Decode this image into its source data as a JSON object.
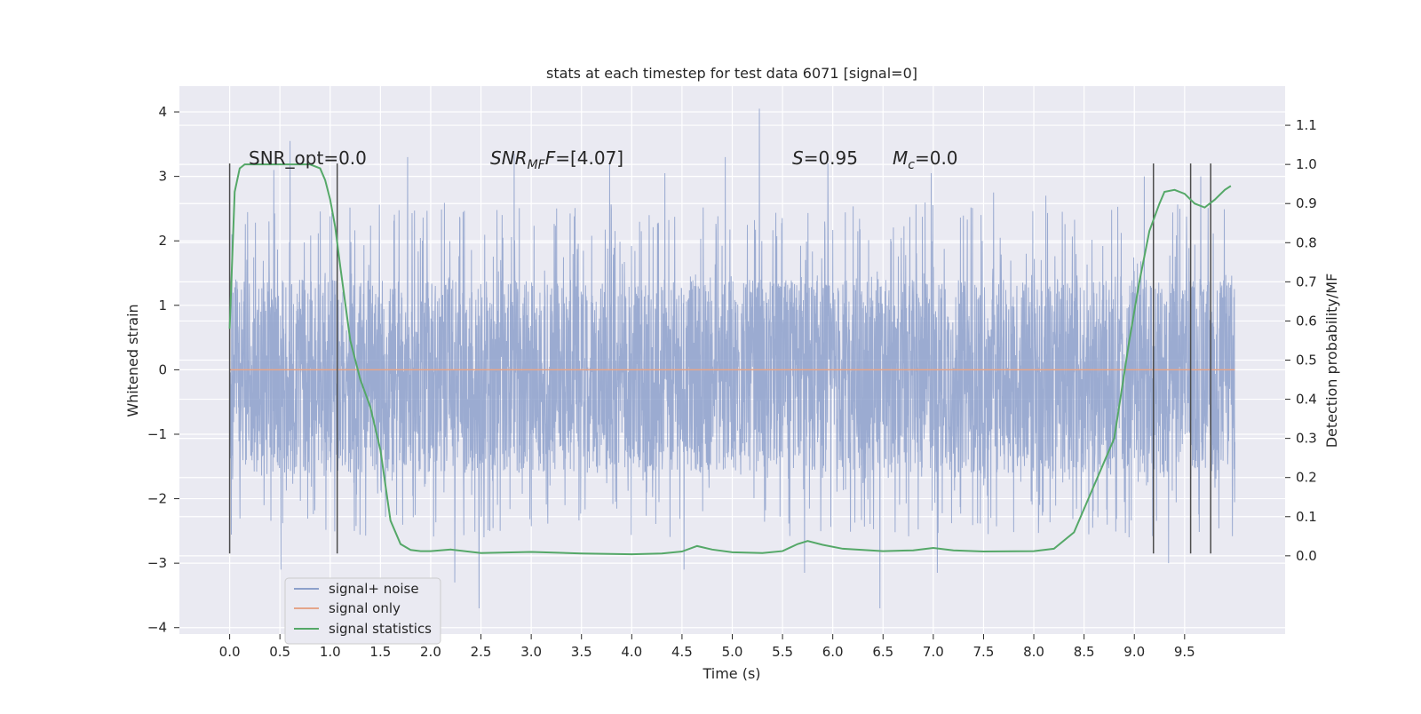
{
  "chart_data": {
    "type": "line",
    "title": "stats at each timestep for test data 6071 [signal=0]",
    "xlabel": "Time (s)",
    "ylabel_left": "Whitened strain",
    "ylabel_right": "Detection probability/MF",
    "xlim": [
      -0.5,
      10.5
    ],
    "ylim_left": [
      -4.1,
      4.4
    ],
    "ylim_right": [
      -0.2,
      1.2
    ],
    "x_ticks": [
      "0.0",
      "0.5",
      "1.0",
      "1.5",
      "2.0",
      "2.5",
      "3.0",
      "3.5",
      "4.0",
      "4.5",
      "5.0",
      "5.5",
      "6.0",
      "6.5",
      "7.0",
      "7.5",
      "8.0",
      "8.5",
      "9.0",
      "9.5"
    ],
    "x_tick_values": [
      0,
      0.5,
      1,
      1.5,
      2,
      2.5,
      3,
      3.5,
      4,
      4.5,
      5,
      5.5,
      6,
      6.5,
      7,
      7.5,
      8,
      8.5,
      9,
      9.5
    ],
    "y_left_ticks": [
      "4",
      "3",
      "2",
      "1",
      "0",
      "−1",
      "−2",
      "−3",
      "−4"
    ],
    "y_left_tick_values": [
      4,
      3,
      2,
      1,
      0,
      -1,
      -2,
      -3,
      -4
    ],
    "y_right_ticks": [
      "1.1",
      "1.0",
      "0.9",
      "0.8",
      "0.7",
      "0.6",
      "0.5",
      "0.4",
      "0.3",
      "0.2",
      "0.1",
      "0.0"
    ],
    "y_right_tick_values": [
      1.1,
      1.0,
      0.9,
      0.8,
      0.7,
      0.6,
      0.5,
      0.4,
      0.3,
      0.2,
      0.1,
      0.0
    ],
    "grid": true,
    "legend_placement": "lower-left",
    "annotations": {
      "snr_opt": "SNR_opt=0.0",
      "snr_mf_base": "SNR",
      "snr_mf_sub": "MF",
      "snr_mf_italic_f": "F",
      "snr_mf_value": "=[4.07]",
      "s_symbol": "S",
      "s_value": "=0.95",
      "mc_symbol": "M",
      "mc_sub": "c",
      "mc_value": "=0.0"
    },
    "vertical_markers_x": [
      0.0,
      1.07,
      9.19,
      9.56,
      9.76
    ],
    "series": [
      {
        "name": "signal+ noise",
        "color": "#8da0cb",
        "x_range": [
          0.0,
          10.0
        ],
        "samples": 4096,
        "typical_range": [
          -1.6,
          1.4
        ],
        "values_note_free": true,
        "spikes": [
          [
            0.51,
            -3.1
          ],
          [
            0.6,
            3.55
          ],
          [
            0.44,
            3.1
          ],
          [
            1.77,
            3.3
          ],
          [
            2.24,
            -3.3
          ],
          [
            2.48,
            -3.7
          ],
          [
            2.83,
            3.35
          ],
          [
            3.78,
            3.2
          ],
          [
            4.33,
            3.05
          ],
          [
            4.52,
            -3.1
          ],
          [
            4.93,
            3.3
          ],
          [
            5.27,
            4.05
          ],
          [
            5.72,
            -3.15
          ],
          [
            5.95,
            3.2
          ],
          [
            6.47,
            -3.7
          ],
          [
            7.04,
            -3.15
          ],
          [
            6.98,
            3.05
          ],
          [
            9.34,
            -3.0
          ],
          [
            9.66,
            3.0
          ],
          [
            9.1,
            3.0
          ],
          [
            1.24,
            -2.5
          ],
          [
            8.12,
            2.7
          ],
          [
            7.6,
            2.75
          ]
        ]
      },
      {
        "name": "signal only",
        "color": "#e5a58a",
        "x": [
          0.0,
          10.0
        ],
        "y": [
          0.0,
          0.0
        ]
      },
      {
        "name": "signal statistics",
        "color": "#55a868",
        "x": [
          0.0,
          0.05,
          0.1,
          0.15,
          0.25,
          0.4,
          0.6,
          0.8,
          0.9,
          0.95,
          1.0,
          1.05,
          1.1,
          1.2,
          1.3,
          1.4,
          1.5,
          1.6,
          1.7,
          1.8,
          1.9,
          2.0,
          2.2,
          2.5,
          3.0,
          3.5,
          4.0,
          4.3,
          4.5,
          4.65,
          4.8,
          5.0,
          5.3,
          5.5,
          5.65,
          5.75,
          5.9,
          6.1,
          6.5,
          6.8,
          7.0,
          7.2,
          7.5,
          8.0,
          8.2,
          8.4,
          8.6,
          8.8,
          8.95,
          9.05,
          9.15,
          9.25,
          9.3,
          9.4,
          9.5,
          9.6,
          9.7,
          9.8,
          9.9,
          9.96
        ],
        "y": [
          0.58,
          0.93,
          0.99,
          1.0,
          1.0,
          1.0,
          1.0,
          1.0,
          0.99,
          0.96,
          0.91,
          0.84,
          0.74,
          0.55,
          0.45,
          0.38,
          0.27,
          0.09,
          0.03,
          0.015,
          0.012,
          0.012,
          0.016,
          0.007,
          0.01,
          0.006,
          0.004,
          0.006,
          0.011,
          0.025,
          0.016,
          0.009,
          0.007,
          0.012,
          0.03,
          0.038,
          0.028,
          0.018,
          0.012,
          0.014,
          0.02,
          0.014,
          0.011,
          0.012,
          0.018,
          0.06,
          0.18,
          0.3,
          0.55,
          0.7,
          0.83,
          0.9,
          0.93,
          0.935,
          0.925,
          0.9,
          0.89,
          0.91,
          0.935,
          0.945
        ]
      }
    ]
  }
}
